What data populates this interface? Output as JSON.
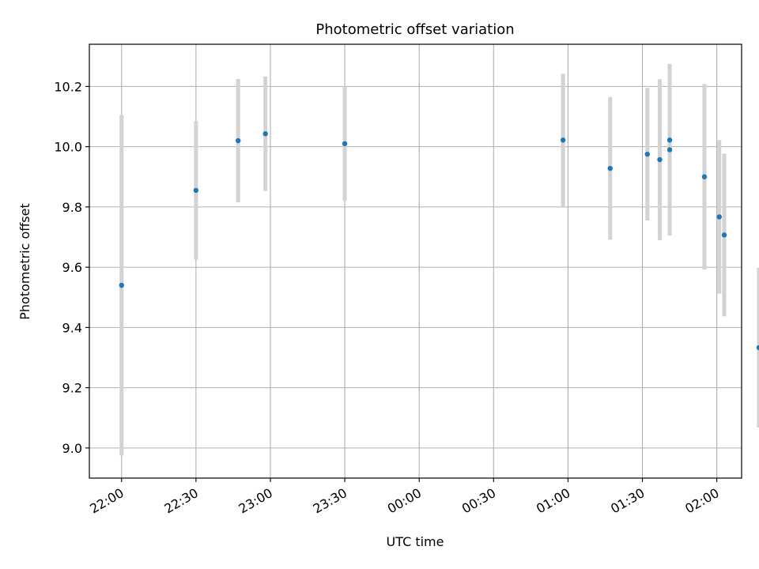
{
  "chart_data": {
    "type": "scatter",
    "title": "Photometric offset variation",
    "xlabel": "UTC time",
    "ylabel": "Photometric offset",
    "x_is_time": true,
    "xlim": [
      "21:47",
      "02:10+1"
    ],
    "ylim": [
      8.9,
      10.34
    ],
    "x_ticks": [
      "22:00",
      "22:30",
      "23:00",
      "23:30",
      "00:00",
      "00:30",
      "01:00",
      "01:30",
      "02:00"
    ],
    "y_ticks": [
      "9.0",
      "9.2",
      "9.4",
      "9.6",
      "9.8",
      "10.0",
      "10.2"
    ],
    "grid": true,
    "colors": {
      "point": "#1f77b4",
      "errorbar": "#d3d3d3",
      "grid": "#b0b0b0"
    },
    "series": [
      {
        "x": [
          "22:00",
          "22:30",
          "22:47",
          "22:58",
          "23:30",
          "00:58",
          "01:17",
          "01:32",
          "01:37",
          "01:41",
          "01:41",
          "01:55",
          "02:01",
          "02:03",
          "02:17"
        ],
        "y": [
          9.54,
          9.855,
          10.02,
          10.043,
          10.01,
          10.022,
          9.928,
          9.975,
          9.957,
          9.99,
          10.022,
          9.9,
          9.767,
          9.707,
          9.333
        ],
        "yerr": [
          0.565,
          0.23,
          0.205,
          0.19,
          0.19,
          0.22,
          0.237,
          0.22,
          0.267,
          0.285,
          0.25,
          0.308,
          0.255,
          0.27,
          0.265
        ]
      }
    ]
  }
}
